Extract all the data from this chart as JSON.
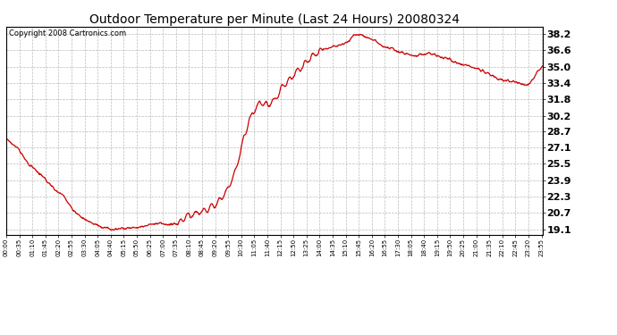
{
  "title": "Outdoor Temperature per Minute (Last 24 Hours) 20080324",
  "copyright": "Copyright 2008 Cartronics.com",
  "line_color": "#cc0000",
  "bg_color": "#ffffff",
  "plot_bg_color": "#ffffff",
  "grid_color": "#aaaaaa",
  "grid_style": "--",
  "yticks": [
    19.1,
    20.7,
    22.3,
    23.9,
    25.5,
    27.1,
    28.7,
    30.2,
    31.8,
    33.4,
    35.0,
    36.6,
    38.2
  ],
  "ylim": [
    18.6,
    38.9
  ],
  "key_points_x": [
    0,
    15,
    30,
    50,
    60,
    75,
    90,
    110,
    130,
    150,
    155,
    160,
    170,
    180,
    200,
    230,
    260,
    285,
    320,
    350,
    380,
    410,
    430,
    440,
    460,
    480,
    510,
    540,
    570,
    590,
    600,
    615,
    630,
    645,
    660,
    680,
    700,
    720,
    740,
    760,
    780,
    800,
    820,
    840,
    860,
    880,
    900,
    910,
    920,
    930,
    950,
    970,
    990,
    1010,
    1030,
    1050,
    1080,
    1100,
    1120,
    1150,
    1180,
    1200,
    1220,
    1250,
    1280,
    1320,
    1360,
    1400,
    1439
  ],
  "key_points_y": [
    27.9,
    27.5,
    27.1,
    26.0,
    25.5,
    25.0,
    24.5,
    23.8,
    23.0,
    22.5,
    22.3,
    22.0,
    21.5,
    21.0,
    20.3,
    19.7,
    19.3,
    19.15,
    19.2,
    19.3,
    19.5,
    19.7,
    19.6,
    19.55,
    19.6,
    20.3,
    20.7,
    21.0,
    21.8,
    22.8,
    23.5,
    24.8,
    27.0,
    29.0,
    30.5,
    31.5,
    31.2,
    31.8,
    33.0,
    33.8,
    34.5,
    35.3,
    36.0,
    36.5,
    36.8,
    37.0,
    37.2,
    37.3,
    37.5,
    38.0,
    38.2,
    37.8,
    37.5,
    37.0,
    36.8,
    36.5,
    36.2,
    36.0,
    36.3,
    36.2,
    35.8,
    35.5,
    35.2,
    35.0,
    34.5,
    33.8,
    33.5,
    33.2,
    35.2
  ],
  "total_minutes": 1440,
  "xtick_interval": 35,
  "title_fontsize": 10,
  "copyright_fontsize": 6,
  "ytick_fontsize": 8,
  "xtick_fontsize": 5
}
